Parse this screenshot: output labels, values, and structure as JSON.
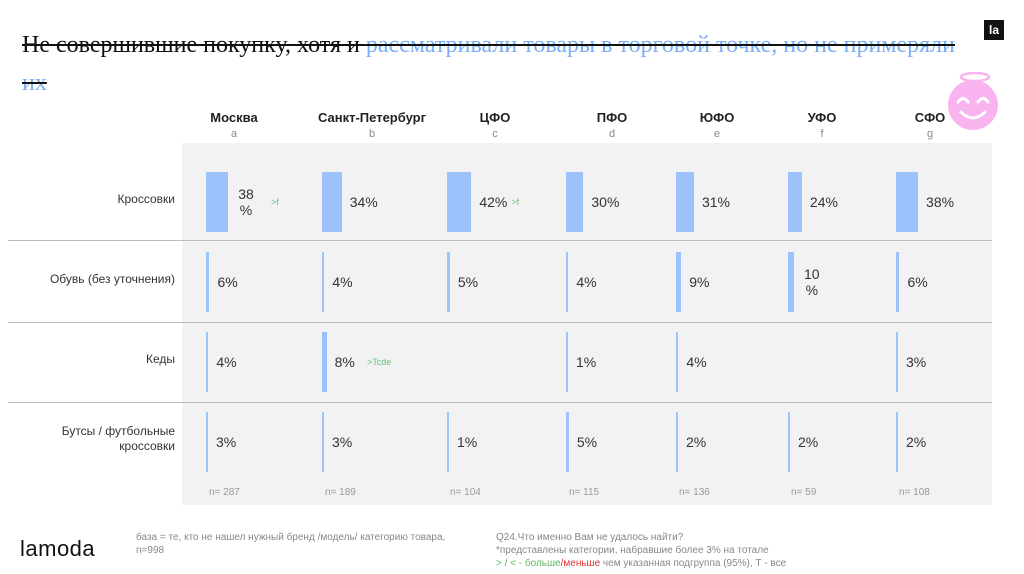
{
  "title": {
    "part1": "Не совершившие покупку, хотя и ",
    "part2": "рассматривали товары в торговой точке, но не примеряли их"
  },
  "logo_small": "la",
  "brand": "lamoda",
  "colors": {
    "bar": "#9cc1fb",
    "accent": "#7aaef5",
    "emoji": "#f9b4f0",
    "significance": "#6cbf7c",
    "less": "#e03030"
  },
  "chart_data": {
    "type": "bar",
    "columns": [
      {
        "name": "Москва",
        "letter": "a",
        "n": "n= 287"
      },
      {
        "name": "Санкт-Петербург",
        "letter": "b",
        "n": "n= 189"
      },
      {
        "name": "ЦФО",
        "letter": "c",
        "n": "n= 104"
      },
      {
        "name": "ПФО",
        "letter": "d",
        "n": "n= 115"
      },
      {
        "name": "ЮФО",
        "letter": "e",
        "n": "n= 136"
      },
      {
        "name": "УФО",
        "letter": "f",
        "n": "n= 59"
      },
      {
        "name": "СФО",
        "letter": "g",
        "n": "n= 108"
      }
    ],
    "rows": [
      {
        "label": "Кроссовки",
        "values": [
          38,
          34,
          42,
          30,
          31,
          24,
          38
        ],
        "labels": [
          "38 %",
          "34%",
          "42%",
          "30%",
          "31%",
          "24%",
          "38%"
        ],
        "sig": [
          ">f",
          "",
          "",
          "",
          "",
          "",
          ""
        ],
        "sig_inline": [
          "",
          "",
          " >f",
          "",
          "",
          "",
          ""
        ]
      },
      {
        "label": "Обувь (без уточнения)",
        "values": [
          6,
          4,
          5,
          4,
          9,
          10,
          6
        ],
        "labels": [
          "6%",
          "4%",
          "5%",
          "4%",
          "9%",
          "10 %",
          "6%"
        ],
        "sig": [
          "",
          "",
          "",
          "",
          "",
          "",
          ""
        ],
        "sig_inline": [
          "",
          "",
          "",
          "",
          "",
          "",
          ""
        ]
      },
      {
        "label": "Кеды",
        "values": [
          4,
          8,
          null,
          1,
          4,
          null,
          3
        ],
        "labels": [
          "4%",
          "8%",
          "",
          "1%",
          "4%",
          "",
          "3%"
        ],
        "sig": [
          "",
          ">Tcde",
          "",
          "",
          "",
          "",
          ""
        ],
        "sig_inline": [
          "",
          "",
          "",
          "",
          "",
          "",
          ""
        ]
      },
      {
        "label": "Бутсы / футбольные кроссовки",
        "values": [
          3,
          3,
          1,
          5,
          2,
          2,
          2
        ],
        "labels": [
          "3%",
          "3%",
          "1%",
          "5%",
          "2%",
          "2%",
          "2%"
        ],
        "sig": [
          "",
          "",
          "",
          "",
          "",
          "",
          ""
        ],
        "sig_inline": [
          "",
          "",
          "",
          "",
          "",
          "",
          ""
        ]
      }
    ]
  },
  "footer": {
    "base": "база = те, кто не нашел нужный бренд /модель/ категорию товара, n=998",
    "question": "Q24.Что именно Вам не удалось найти?",
    "note": "*представлены категории, набравшие более 3% на тотале",
    "legend_sym": "> / < - ",
    "legend_more": "больше",
    "legend_slash": "/",
    "legend_less": "меньше",
    "legend_rest": " чем указанная подгруппа (95%), Т - все"
  }
}
